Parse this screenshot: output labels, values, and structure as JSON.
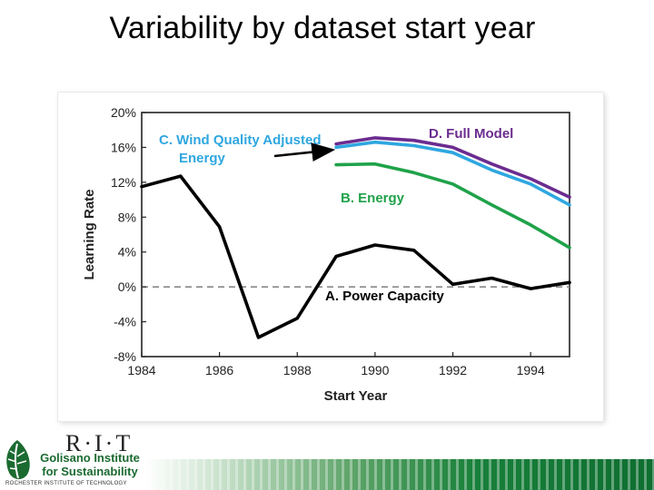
{
  "slide": {
    "title": "Variability by dataset start year"
  },
  "branding": {
    "rit_wordmark": "R·I·T",
    "institute_line1": "Golisano Institute",
    "institute_line2": "for Sustainability",
    "rit_full": "ROCHESTER INSTITUTE OF TECHNOLOGY",
    "green": "#1b6a30"
  },
  "chart_data": {
    "type": "line",
    "title": "",
    "xlabel": "Start Year",
    "ylabel": "Learning Rate",
    "xlim": [
      1984,
      1995
    ],
    "ylim": [
      -8,
      20
    ],
    "x_ticks": [
      1984,
      1986,
      1988,
      1990,
      1992,
      1994
    ],
    "x_tick_labels": [
      "1984",
      "1986",
      "1988",
      "1990",
      "1992",
      "1994"
    ],
    "y_ticks": [
      -8,
      -4,
      0,
      4,
      8,
      12,
      16,
      20
    ],
    "y_tick_labels": [
      "-8%",
      "-4%",
      "0%",
      "4%",
      "8%",
      "12%",
      "16%",
      "20%"
    ],
    "grid": false,
    "reference_line": {
      "y": 0,
      "style": "dashed",
      "color": "#888888"
    },
    "series": [
      {
        "name": "A. Power Capacity",
        "color": "#000000",
        "x": [
          1984,
          1985,
          1986,
          1987,
          1988,
          1989,
          1990,
          1991,
          1992,
          1993,
          1994,
          1995
        ],
        "values": [
          11.5,
          12.7,
          6.9,
          -5.8,
          -3.6,
          3.5,
          4.8,
          4.2,
          0.3,
          1.0,
          -0.2,
          0.5
        ]
      },
      {
        "name": "B. Energy",
        "color": "#1fa24a",
        "x": [
          1989,
          1990,
          1991,
          1992,
          1993,
          1994,
          1995
        ],
        "values": [
          14.0,
          14.1,
          13.1,
          11.8,
          9.4,
          7.1,
          4.5
        ]
      },
      {
        "name": "C. Wind Quality Adjusted Energy",
        "color": "#2fa7e0",
        "x": [
          1989,
          1990,
          1991,
          1992,
          1993,
          1994,
          1995
        ],
        "values": [
          16.0,
          16.6,
          16.2,
          15.4,
          13.4,
          11.8,
          9.4
        ]
      },
      {
        "name": "D. Full Model",
        "color": "#6b2c8f",
        "x": [
          1989,
          1990,
          1991,
          1992,
          1993,
          1994,
          1995
        ],
        "values": [
          16.4,
          17.1,
          16.8,
          16.0,
          14.1,
          12.4,
          10.3
        ]
      }
    ],
    "annotations": [
      {
        "series_index": 0,
        "lines": [
          "A. Power Capacity"
        ],
        "color": "#000000"
      },
      {
        "series_index": 1,
        "lines": [
          "B. Energy"
        ],
        "color": "#1fa24a"
      },
      {
        "series_index": 2,
        "lines": [
          "C. Wind Quality Adjusted",
          "Energy"
        ],
        "color": "#2fa7e0"
      },
      {
        "series_index": 3,
        "lines": [
          "D. Full Model"
        ],
        "color": "#6b2c8f"
      }
    ]
  }
}
